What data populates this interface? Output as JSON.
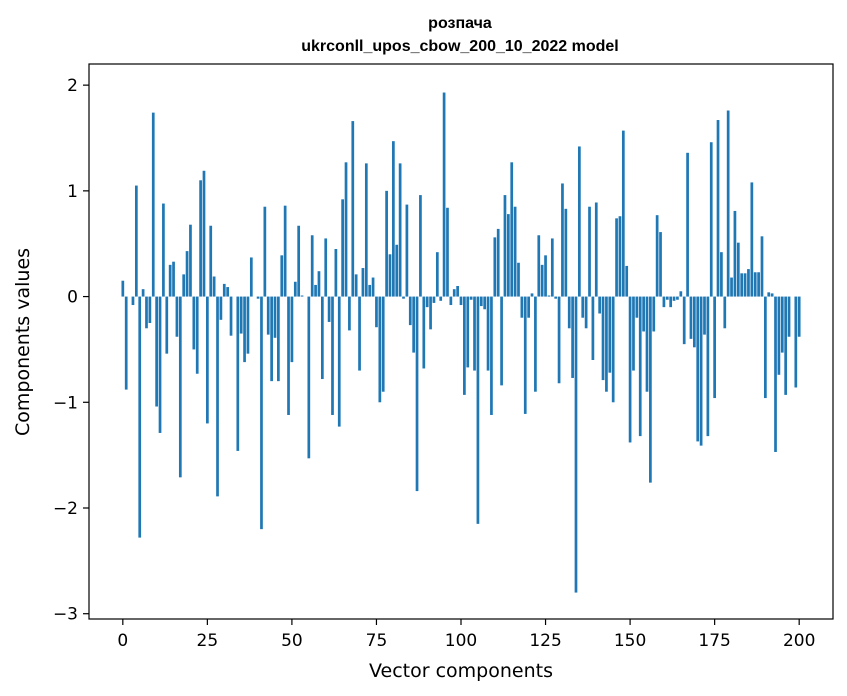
{
  "chart_data": {
    "type": "bar",
    "title": "розпача",
    "subtitle": "ukrconll_upos_cbow_200_10_2022 model",
    "xlabel": "Vector components",
    "ylabel": "Components values",
    "xlim": [
      -10,
      210
    ],
    "ylim": [
      -3.05,
      2.2
    ],
    "xticks": [
      0,
      25,
      50,
      75,
      100,
      125,
      150,
      175,
      200
    ],
    "yticks": [
      -3,
      -2,
      -1,
      0,
      1,
      2
    ],
    "ytick_labels": [
      "−3",
      "−2",
      "−1",
      "0",
      "1",
      "2"
    ],
    "grid": false,
    "color": "#1f77b4",
    "values": [
      0.15,
      -0.88,
      0.0,
      -0.08,
      1.05,
      -2.28,
      0.07,
      -0.3,
      -0.25,
      1.74,
      -1.04,
      -1.29,
      0.88,
      -0.54,
      0.3,
      0.33,
      -0.38,
      -1.71,
      0.21,
      0.43,
      0.68,
      -0.5,
      -0.73,
      1.1,
      1.19,
      -1.2,
      0.67,
      0.19,
      -1.89,
      -0.22,
      0.12,
      0.09,
      -0.37,
      0.0,
      -1.46,
      -0.35,
      -0.62,
      -0.54,
      0.37,
      0.0,
      -0.02,
      -2.2,
      0.85,
      -0.36,
      -0.8,
      -0.39,
      -0.8,
      0.39,
      0.86,
      -1.12,
      -0.62,
      0.14,
      0.67,
      0.01,
      0.0,
      -1.53,
      0.58,
      0.11,
      0.24,
      -0.78,
      0.55,
      -0.24,
      -1.12,
      0.45,
      -1.23,
      0.92,
      1.27,
      -0.32,
      1.66,
      0.21,
      -0.7,
      0.27,
      1.26,
      0.11,
      0.18,
      -0.29,
      -1.0,
      -0.9,
      1.0,
      0.4,
      1.47,
      0.49,
      1.26,
      -0.02,
      0.87,
      -0.27,
      -0.53,
      -1.84,
      0.96,
      -0.68,
      -0.1,
      -0.31,
      -0.06,
      0.42,
      -0.04,
      1.93,
      0.84,
      -0.08,
      0.07,
      0.1,
      -0.08,
      -0.93,
      -0.67,
      -0.03,
      -0.7,
      -2.15,
      -0.09,
      -0.12,
      -0.7,
      -1.12,
      0.56,
      0.64,
      -0.84,
      0.96,
      0.78,
      1.27,
      0.85,
      0.32,
      -0.2,
      -1.11,
      -0.2,
      0.03,
      -0.9,
      0.58,
      0.3,
      0.39,
      0.01,
      0.55,
      -0.02,
      -0.82,
      1.07,
      0.83,
      -0.3,
      -0.77,
      -2.8,
      1.42,
      -0.2,
      -0.3,
      0.85,
      -0.6,
      0.89,
      -0.16,
      -0.79,
      -0.9,
      -0.72,
      -1.0,
      0.74,
      0.76,
      1.57,
      0.29,
      -1.38,
      -0.7,
      -0.2,
      -1.32,
      -0.33,
      -0.9,
      -1.76,
      -0.33,
      0.77,
      0.61,
      -0.1,
      -0.03,
      -0.1,
      -0.04,
      -0.03,
      0.05,
      -0.45,
      1.36,
      -0.4,
      -0.48,
      -1.37,
      -1.41,
      -0.36,
      -1.32,
      1.46,
      -0.96,
      1.67,
      0.42,
      -0.3,
      1.76,
      0.18,
      0.81,
      0.51,
      0.22,
      0.22,
      0.26,
      1.08,
      0.23,
      0.23,
      0.57,
      -0.96,
      0.04,
      0.03,
      -1.47,
      -0.74,
      -0.53,
      -0.93,
      -0.38,
      0.0,
      -0.86,
      -0.38
    ]
  }
}
